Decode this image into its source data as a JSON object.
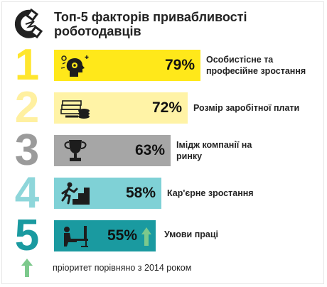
{
  "title": {
    "line1": "Топ-5 факторів привабливості",
    "line2": "роботодавців"
  },
  "header_icon": "magnet-icon",
  "colors": {
    "yellow": "#ffe81a",
    "light_yellow": "#fff3a6",
    "gray": "#a6a6a6",
    "light_teal": "#7fd1d6",
    "teal": "#1a9aa0",
    "digit_yellow": "#ffe62e",
    "digit_light_yellow": "#fff0a0",
    "digit_gray": "#9b9b9b",
    "digit_light_teal": "#8ed6da",
    "digit_teal": "#1a9aa0",
    "arrow": "#7cc98c"
  },
  "chart_data": {
    "type": "bar",
    "title": "Топ-5 факторів привабливості роботодавців",
    "ranks": [
      "1",
      "2",
      "3",
      "4",
      "5"
    ],
    "categories": [
      "Особистісне та професійне зростання",
      "Розмір заробітної плати",
      "Імідж компанії на ринку",
      "Кар'єрне зростання",
      "Умови праці"
    ],
    "values": [
      79,
      72,
      63,
      58,
      55
    ],
    "value_labels": [
      "79%",
      "72%",
      "63%",
      "58%",
      "55%"
    ],
    "icons": [
      "head-gears-icon",
      "money-coins-icon",
      "trophy-icon",
      "climbing-stairs-icon",
      "desk-worker-icon"
    ],
    "priority_up": [
      false,
      false,
      false,
      false,
      true
    ]
  },
  "rows": [
    {
      "rank": "1",
      "pct": "79%",
      "label_lines": [
        "Особистісне та",
        "професійне зростання"
      ]
    },
    {
      "rank": "2",
      "pct": "72%",
      "label_lines": [
        "Розмір заробітної плати"
      ]
    },
    {
      "rank": "3",
      "pct": "63%",
      "label_lines": [
        "Імідж компанії на",
        "ринку"
      ]
    },
    {
      "rank": "4",
      "pct": "58%",
      "label_lines": [
        "Кар'єрне зростання"
      ]
    },
    {
      "rank": "5",
      "pct": "55%",
      "label_lines": [
        "Умови праці"
      ]
    }
  ],
  "footer": {
    "text": "пріоритет порівняно з  2014 роком",
    "icon": "up-arrow-icon"
  }
}
